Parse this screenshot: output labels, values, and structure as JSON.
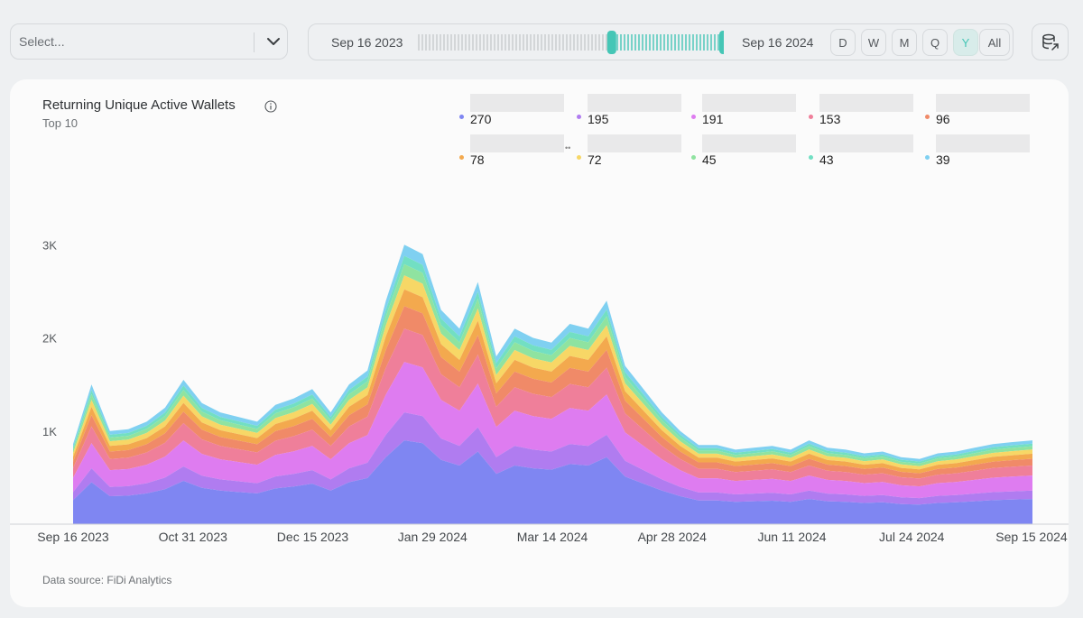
{
  "toolbar": {
    "select_placeholder": "Select...",
    "range_start": "Sep 16 2023",
    "range_end": "Sep 16 2024",
    "range_selected_fraction": [
      0.62,
      1.0
    ],
    "periods": [
      "D",
      "W",
      "M",
      "Q",
      "Y",
      "All"
    ],
    "active_period": "Y",
    "accent_color": "#45c6b6"
  },
  "card": {
    "title": "Returning Unique Active Wallets",
    "subtitle": "Top 10",
    "footer": "Data source: FiDi Analytics"
  },
  "legend": [
    {
      "value": "270",
      "color": "#7f86f2"
    },
    {
      "value": "195",
      "color": "#b07cf0"
    },
    {
      "value": "191",
      "color": "#de7cf0"
    },
    {
      "value": "153",
      "color": "#ef7f9a"
    },
    {
      "value": "96",
      "color": "#f08a68"
    },
    {
      "value": "78",
      "color": "#f3a94e"
    },
    {
      "value": "72",
      "color": "#f7d766"
    },
    {
      "value": "45",
      "color": "#8fe3a0"
    },
    {
      "value": "43",
      "color": "#72dfc3"
    },
    {
      "value": "39",
      "color": "#7fd0f1"
    }
  ],
  "chart_data": {
    "type": "area",
    "stacked": true,
    "title": "Returning Unique Active Wallets",
    "subtitle": "Top 10",
    "ylim": [
      0,
      4000
    ],
    "yticks": [
      {
        "value": 1000,
        "label": "1K"
      },
      {
        "value": 2000,
        "label": "2K"
      },
      {
        "value": 3000,
        "label": "3K"
      }
    ],
    "x_tick_labels": [
      "Sep 16 2023",
      "Oct 31 2023",
      "Dec 15 2023",
      "Jan 29 2024",
      "Mar 14 2024",
      "Apr 28 2024",
      "Jun 11 2024",
      "Jul 24 2024",
      "Sep 15 2024"
    ],
    "x_dates": [
      "2023-09-16",
      "2023-09-23",
      "2023-09-30",
      "2023-10-07",
      "2023-10-14",
      "2023-10-21",
      "2023-10-28",
      "2023-11-04",
      "2023-11-11",
      "2023-11-18",
      "2023-11-25",
      "2023-12-02",
      "2023-12-09",
      "2023-12-16",
      "2023-12-23",
      "2023-12-30",
      "2024-01-06",
      "2024-01-13",
      "2024-01-20",
      "2024-01-27",
      "2024-02-03",
      "2024-02-10",
      "2024-02-17",
      "2024-02-24",
      "2024-03-02",
      "2024-03-09",
      "2024-03-16",
      "2024-03-23",
      "2024-03-30",
      "2024-04-06",
      "2024-04-13",
      "2024-04-20",
      "2024-04-27",
      "2024-05-04",
      "2024-05-11",
      "2024-05-18",
      "2024-05-25",
      "2024-06-01",
      "2024-06-08",
      "2024-06-15",
      "2024-06-22",
      "2024-06-29",
      "2024-07-06",
      "2024-07-13",
      "2024-07-20",
      "2024-07-27",
      "2024-08-03",
      "2024-08-10",
      "2024-08-17",
      "2024-08-24",
      "2024-08-31",
      "2024-09-07",
      "2024-09-15"
    ],
    "totals": [
      860,
      1500,
      1000,
      1020,
      1100,
      1250,
      1550,
      1300,
      1200,
      1150,
      1100,
      1280,
      1350,
      1450,
      1200,
      1500,
      1650,
      2400,
      3000,
      2900,
      2300,
      2100,
      2600,
      1800,
      2100,
      2000,
      1950,
      2150,
      2100,
      2400,
      1700,
      1450,
      1200,
      1000,
      850,
      850,
      800,
      820,
      840,
      800,
      900,
      820,
      800,
      760,
      780,
      720,
      700,
      760,
      780,
      820,
      860,
      880,
      900
    ],
    "share": [
      0.3,
      0.1,
      0.18,
      0.12,
      0.08,
      0.06,
      0.05,
      0.04,
      0.03,
      0.04
    ],
    "series": [
      {
        "value": 270,
        "color": "#7f86f2"
      },
      {
        "value": 195,
        "color": "#b07cf0"
      },
      {
        "value": 191,
        "color": "#de7cf0"
      },
      {
        "value": 153,
        "color": "#ef7f9a"
      },
      {
        "value": 96,
        "color": "#f08a68"
      },
      {
        "value": 78,
        "color": "#f3a94e"
      },
      {
        "value": 72,
        "color": "#f7d766"
      },
      {
        "value": 45,
        "color": "#8fe3a0"
      },
      {
        "value": 43,
        "color": "#72dfc3"
      },
      {
        "value": 39,
        "color": "#7fd0f1"
      }
    ],
    "grid": false
  }
}
